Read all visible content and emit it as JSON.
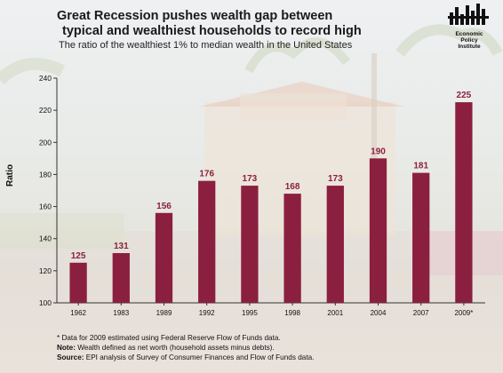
{
  "header": {
    "title_line1": "Great Recession pushes wealth gap between",
    "title_line2": "typical and wealthiest households to record high",
    "subtitle": "The ratio of the wealthiest 1% to median wealth in the United States"
  },
  "logo": {
    "line1": "Economic",
    "line2": "Policy",
    "line3": "Institute"
  },
  "notes": {
    "line1": "* Data for 2009 estimated using Federal Reserve Flow of Funds data.",
    "note_label": "Note:",
    "note_text": " Wealth defined as net worth (household assets minus debts).",
    "source_label": "Source:",
    "source_text": " EPI analysis of Survey of Consumer Finances and Flow of Funds data."
  },
  "colors": {
    "bar": "#8b1f3f",
    "label": "#8b1f3f"
  },
  "chart_data": {
    "type": "bar",
    "title": "Great Recession pushes wealth gap between typical and wealthiest households to record high",
    "subtitle": "The ratio of the wealthiest 1% to median wealth in the United States",
    "xlabel": "",
    "ylabel": "Ratio",
    "categories": [
      "1962",
      "1983",
      "1989",
      "1992",
      "1995",
      "1998",
      "2001",
      "2004",
      "2007",
      "2009*"
    ],
    "values": [
      125,
      131,
      156,
      176,
      173,
      168,
      173,
      190,
      181,
      225
    ],
    "ylim": [
      100,
      240
    ],
    "yticks": [
      100,
      120,
      140,
      160,
      180,
      200,
      220,
      240
    ],
    "grid": false,
    "data_labels": true
  }
}
